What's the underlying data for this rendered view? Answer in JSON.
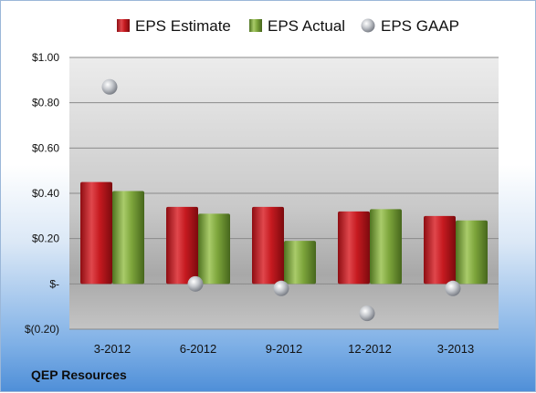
{
  "company": "QEP Resources",
  "chart_data": {
    "type": "bar",
    "categories": [
      "3-2012",
      "6-2012",
      "9-2012",
      "12-2012",
      "3-2013"
    ],
    "series": [
      {
        "name": "EPS Estimate",
        "kind": "bar",
        "color": "#c0181f",
        "values": [
          0.45,
          0.34,
          0.34,
          0.32,
          0.3
        ]
      },
      {
        "name": "EPS Actual",
        "kind": "bar",
        "color": "#7aa33a",
        "values": [
          0.41,
          0.31,
          0.19,
          0.33,
          0.28
        ]
      },
      {
        "name": "EPS GAAP",
        "kind": "marker",
        "color": "#b8bcc4",
        "values": [
          0.87,
          0.0,
          -0.02,
          -0.13,
          -0.02
        ]
      }
    ],
    "ylim": [
      -0.2,
      1.0
    ],
    "yticks": [
      -0.2,
      0,
      0.2,
      0.4,
      0.6,
      0.8,
      1.0
    ],
    "ytick_labels": [
      "$(0.20)",
      "$-",
      "$0.20",
      "$0.40",
      "$0.60",
      "$0.80",
      "$1.00"
    ],
    "legend_position": "top",
    "grid": true
  }
}
